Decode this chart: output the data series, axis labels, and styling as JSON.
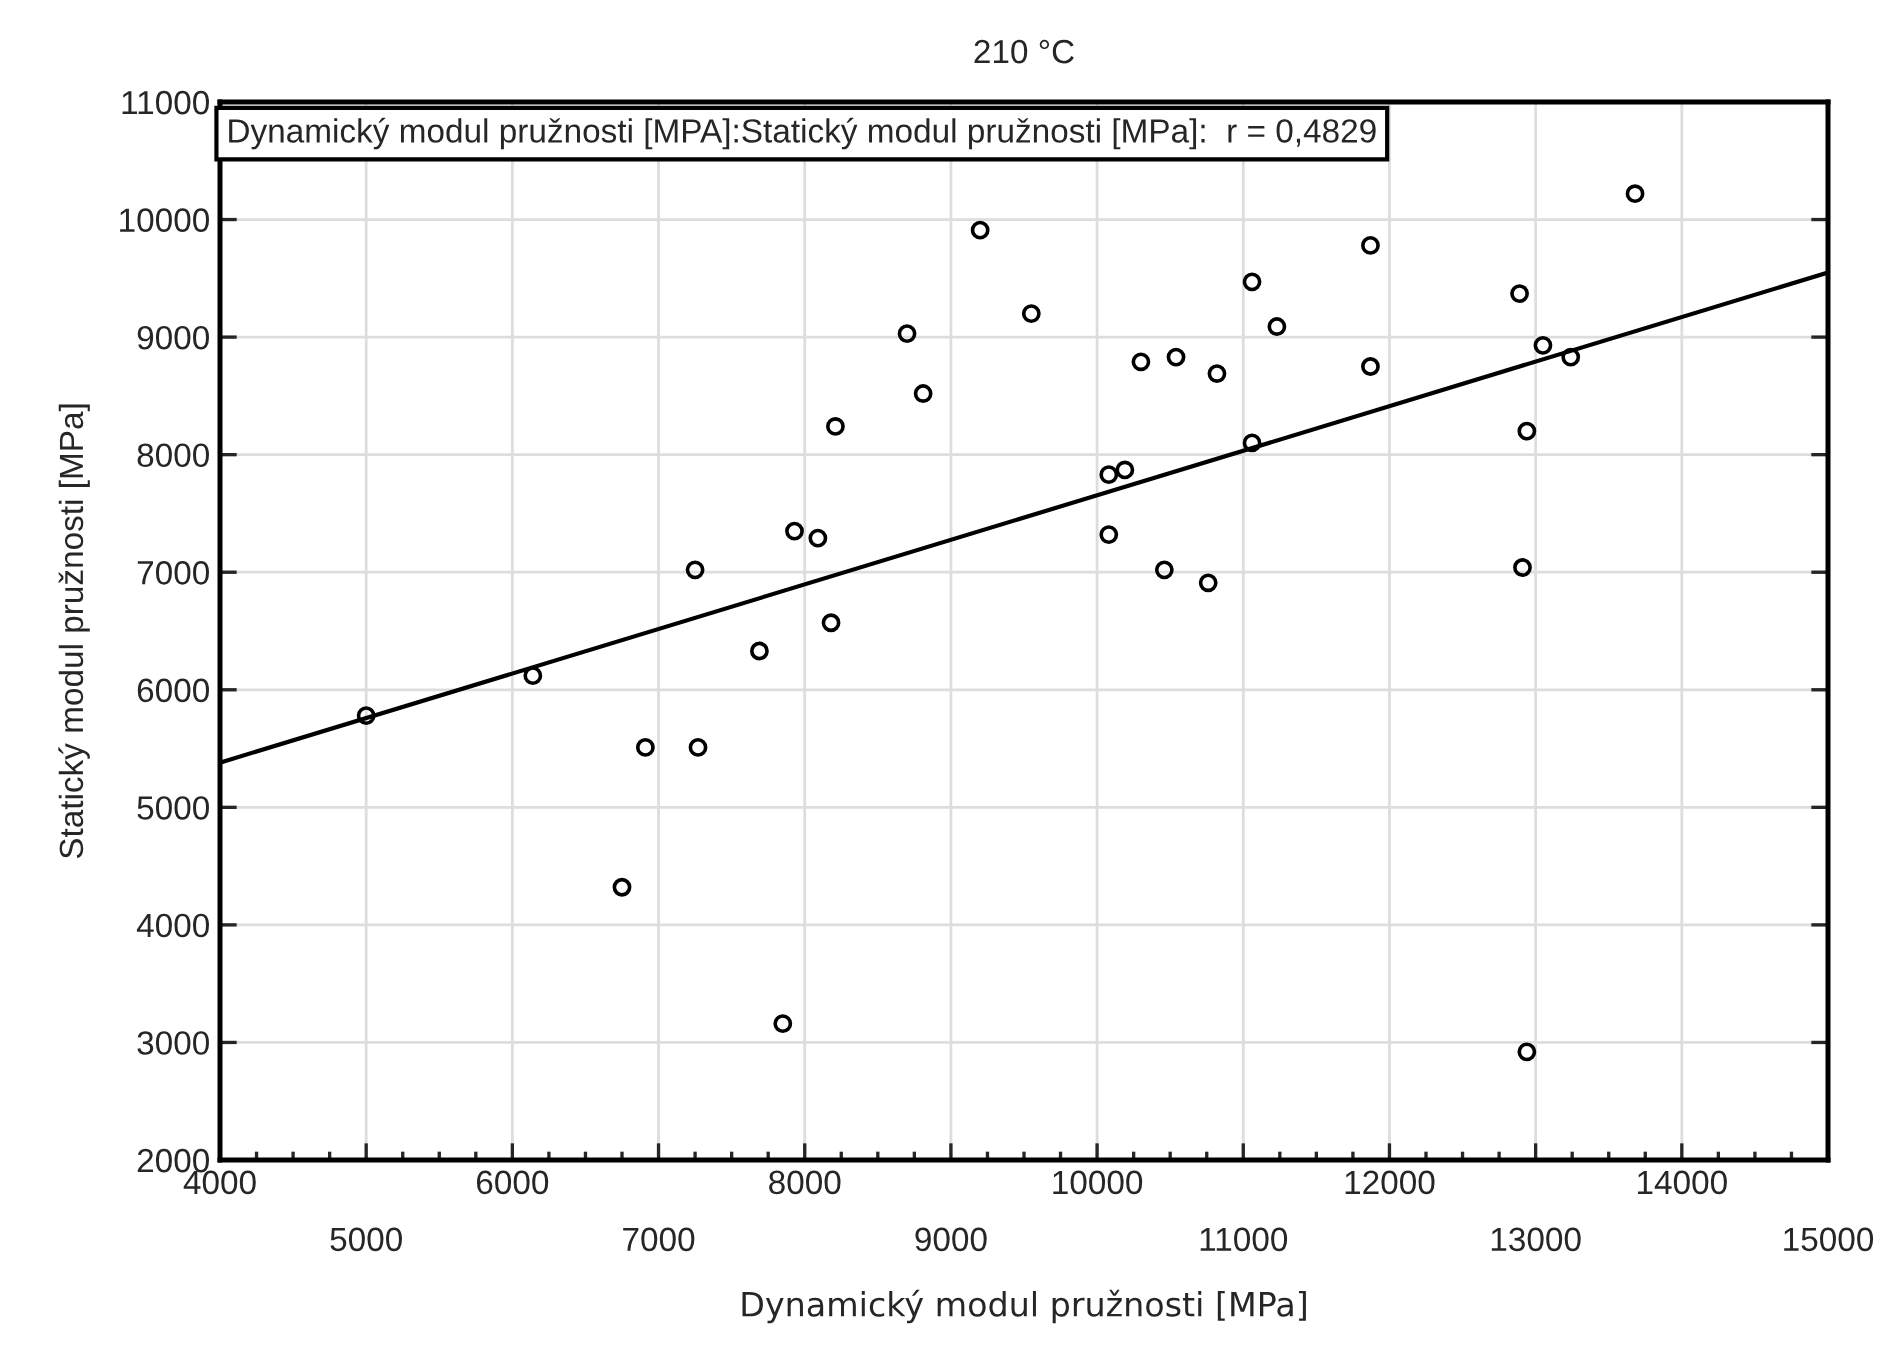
{
  "chart_data": {
    "type": "scatter",
    "title": "210 °C",
    "xlabel": "Dynamický modul pružnosti [MPa]",
    "ylabel": "Statický modul pružnosti [MPa]",
    "annotations": [
      "Dynamický modul pružnosti [MPA]:Statický modul pružnosti [MPa]:  r = 0,4829"
    ],
    "series": [
      {
        "color": "#000000",
        "marker": "circle",
        "x": [
          5000,
          6140,
          6750,
          6910,
          7250,
          7270,
          7690,
          7850,
          7930,
          8090,
          8180,
          8210,
          8700,
          8810,
          9200,
          9550,
          10080,
          10190,
          10080,
          10300,
          10460,
          10540,
          10760,
          10820,
          11060,
          11060,
          11230,
          11870,
          11870,
          12890,
          12910,
          12940,
          12940,
          13050,
          13240,
          13680
        ],
        "values": [
          5780,
          6120,
          4320,
          5510,
          7020,
          5510,
          6330,
          3160,
          7350,
          7290,
          6570,
          8240,
          9030,
          8520,
          9910,
          9200,
          7830,
          7870,
          7320,
          8790,
          7020,
          8830,
          6910,
          8690,
          9470,
          8100,
          9090,
          9780,
          8750,
          9370,
          7040,
          8200,
          2920,
          8930,
          8830,
          10220
        ]
      },
      {
        "type": "line",
        "color": "#000000",
        "marker": "none",
        "line_style": "solid",
        "x": [
          4000,
          15000
        ],
        "values": [
          5380,
          9550
        ]
      }
    ],
    "xlim": [
      4000,
      15000
    ],
    "xticks": [
      4000,
      {
        "value": 5000,
        "label": null
      },
      6000,
      {
        "value": 7000,
        "label": null
      },
      8000,
      {
        "value": 9000,
        "label": null
      },
      10000,
      {
        "value": 11000,
        "label": null
      },
      12000,
      {
        "value": 13000,
        "label": null
      },
      14000,
      {
        "value": 15000,
        "label": null
      }
    ],
    "x2lim": [
      4000,
      15000
    ],
    "x2ticks": [
      5000,
      7000,
      9000,
      11000,
      13000,
      15000
    ],
    "ylim": [
      2000,
      11000
    ],
    "yticks": [
      2000,
      3000,
      4000,
      5000,
      6000,
      7000,
      8000,
      9000,
      10000,
      11000
    ],
    "grid": true,
    "legend": false
  }
}
